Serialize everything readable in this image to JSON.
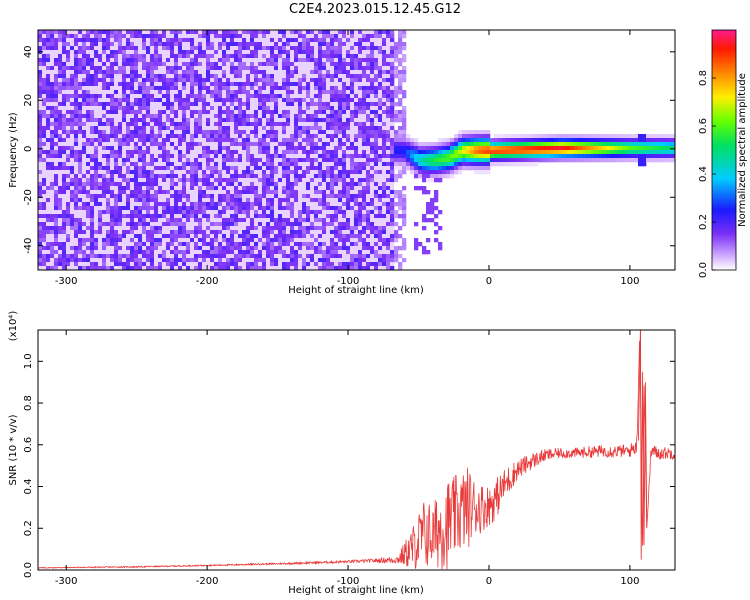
{
  "figure_title": "C2E4.2023.015.12.45.G12",
  "colors": {
    "snr_line": "#e83a3a",
    "background_noise": "#7b2ff7",
    "axis": "#000000"
  },
  "chart_data": [
    {
      "type": "heatmap",
      "title": "",
      "xlabel": "Height of straight line (km)",
      "ylabel": "Frequency (Hz)",
      "xlim": [
        -320,
        132
      ],
      "ylim": [
        -50,
        49
      ],
      "xticks": [
        -300,
        -200,
        -100,
        0,
        100
      ],
      "yticks": [
        -40,
        -20,
        0,
        20,
        40
      ],
      "colorbar": {
        "label": "Normalized spectral amplitude",
        "range": [
          0.0,
          1.0
        ],
        "ticks": [
          "0.0",
          "0.2",
          "0.4",
          "0.6",
          "0.8"
        ],
        "colormap": "rainbow (white-violet-blue-cyan-green-yellow-orange-red-magenta)"
      },
      "features": {
        "noise_region_x": [
          -320,
          -60
        ],
        "noise_amplitude": 0.15,
        "signal_track": [
          {
            "x": -62,
            "freq": 0,
            "amp": 0.25
          },
          {
            "x": -50,
            "freq": -4,
            "amp": 0.45
          },
          {
            "x": -40,
            "freq": -4,
            "amp": 0.55
          },
          {
            "x": -30,
            "freq": -3,
            "amp": 0.6
          },
          {
            "x": -20,
            "freq": 0,
            "amp": 0.7
          },
          {
            "x": -10,
            "freq": 0,
            "amp": 0.85
          },
          {
            "x": 0,
            "freq": 0,
            "amp": 0.9
          },
          {
            "x": 50,
            "freq": 1,
            "amp": 0.95
          },
          {
            "x": 100,
            "freq": 1,
            "amp": 0.6
          },
          {
            "x": 132,
            "freq": 1,
            "amp": 0.5
          }
        ],
        "spike_x": 107
      },
      "grid": false
    },
    {
      "type": "line",
      "title": "",
      "xlabel": "Height of straight line (km)",
      "ylabel": "SNR (10 * v/v)",
      "y_multiplier": "(x10⁴)",
      "xlim": [
        -320,
        132
      ],
      "ylim": [
        0,
        1.15
      ],
      "xticks": [
        -300,
        -200,
        -100,
        0,
        100
      ],
      "yticks": [
        "0.0",
        "0.2",
        "0.4",
        "0.6",
        "0.8",
        "1.0"
      ],
      "series": [
        {
          "color": "#e83a3a",
          "x": [
            -320,
            -300,
            -250,
            -200,
            -150,
            -100,
            -80,
            -65,
            -55,
            -45,
            -40,
            -35,
            -30,
            -25,
            -20,
            -15,
            -10,
            -5,
            0,
            5,
            10,
            15,
            20,
            30,
            40,
            50,
            60,
            80,
            100,
            105,
            107,
            109,
            110,
            112,
            115,
            120,
            132
          ],
          "y": [
            0.01,
            0.012,
            0.015,
            0.022,
            0.03,
            0.04,
            0.045,
            0.05,
            0.1,
            0.18,
            0.16,
            0.2,
            0.22,
            0.25,
            0.28,
            0.3,
            0.3,
            0.3,
            0.31,
            0.34,
            0.4,
            0.44,
            0.48,
            0.52,
            0.55,
            0.56,
            0.56,
            0.57,
            0.57,
            0.6,
            1.15,
            0.05,
            0.9,
            0.2,
            0.57,
            0.56,
            0.56
          ],
          "spread": [
            0.002,
            0.002,
            0.003,
            0.003,
            0.004,
            0.006,
            0.01,
            0.02,
            0.1,
            0.18,
            0.15,
            0.2,
            0.22,
            0.2,
            0.2,
            0.2,
            0.14,
            0.12,
            0.1,
            0.1,
            0.08,
            0.07,
            0.05,
            0.04,
            0.03,
            0.025,
            0.025,
            0.03,
            0.03,
            0.05,
            0,
            0,
            0,
            0,
            0.04,
            0.03,
            0.03
          ]
        }
      ],
      "grid": false
    }
  ]
}
